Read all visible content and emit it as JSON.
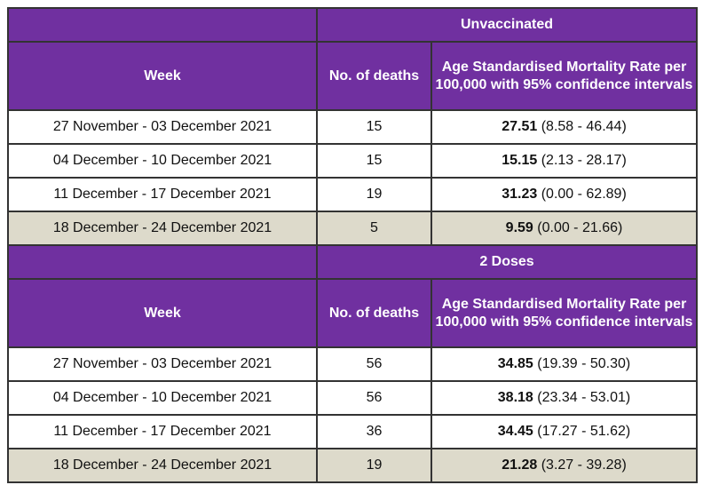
{
  "sections": [
    {
      "title": "Unvaccinated",
      "headers": {
        "week": "Week",
        "deaths": "No. of deaths",
        "rate": "Age Standardised Mortality Rate per 100,000 with 95% confidence intervals"
      },
      "rows": [
        {
          "week": "27 November - 03 December 2021",
          "deaths": "15",
          "rate": "27.51",
          "ci": "(8.58 - 46.44)"
        },
        {
          "week": "04 December - 10 December 2021",
          "deaths": "15",
          "rate": "15.15",
          "ci": "(2.13 - 28.17)"
        },
        {
          "week": "11 December - 17 December 2021",
          "deaths": "19",
          "rate": "31.23",
          "ci": "(0.00 - 62.89)"
        },
        {
          "week": "18 December - 24 December 2021",
          "deaths": "5",
          "rate": "9.59",
          "ci": "(0.00 - 21.66)"
        }
      ]
    },
    {
      "title": "2 Doses",
      "headers": {
        "week": "Week",
        "deaths": "No. of deaths",
        "rate": "Age Standardised Mortality Rate per 100,000 with 95% confidence intervals"
      },
      "rows": [
        {
          "week": "27 November - 03 December 2021",
          "deaths": "56",
          "rate": "34.85",
          "ci": "(19.39 - 50.30)"
        },
        {
          "week": "04 December - 10 December 2021",
          "deaths": "56",
          "rate": "38.18",
          "ci": "(23.34 - 53.01)"
        },
        {
          "week": "11 December - 17 December 2021",
          "deaths": "36",
          "rate": "34.45",
          "ci": "(17.27 - 51.62)"
        },
        {
          "week": "18 December - 24 December 2021",
          "deaths": "19",
          "rate": "21.28",
          "ci": "(3.27 - 39.28)"
        }
      ]
    }
  ],
  "colors": {
    "header_bg": "#7030a0",
    "header_text": "#ffffff",
    "shaded_row": "#dddacb",
    "border": "#333333"
  }
}
